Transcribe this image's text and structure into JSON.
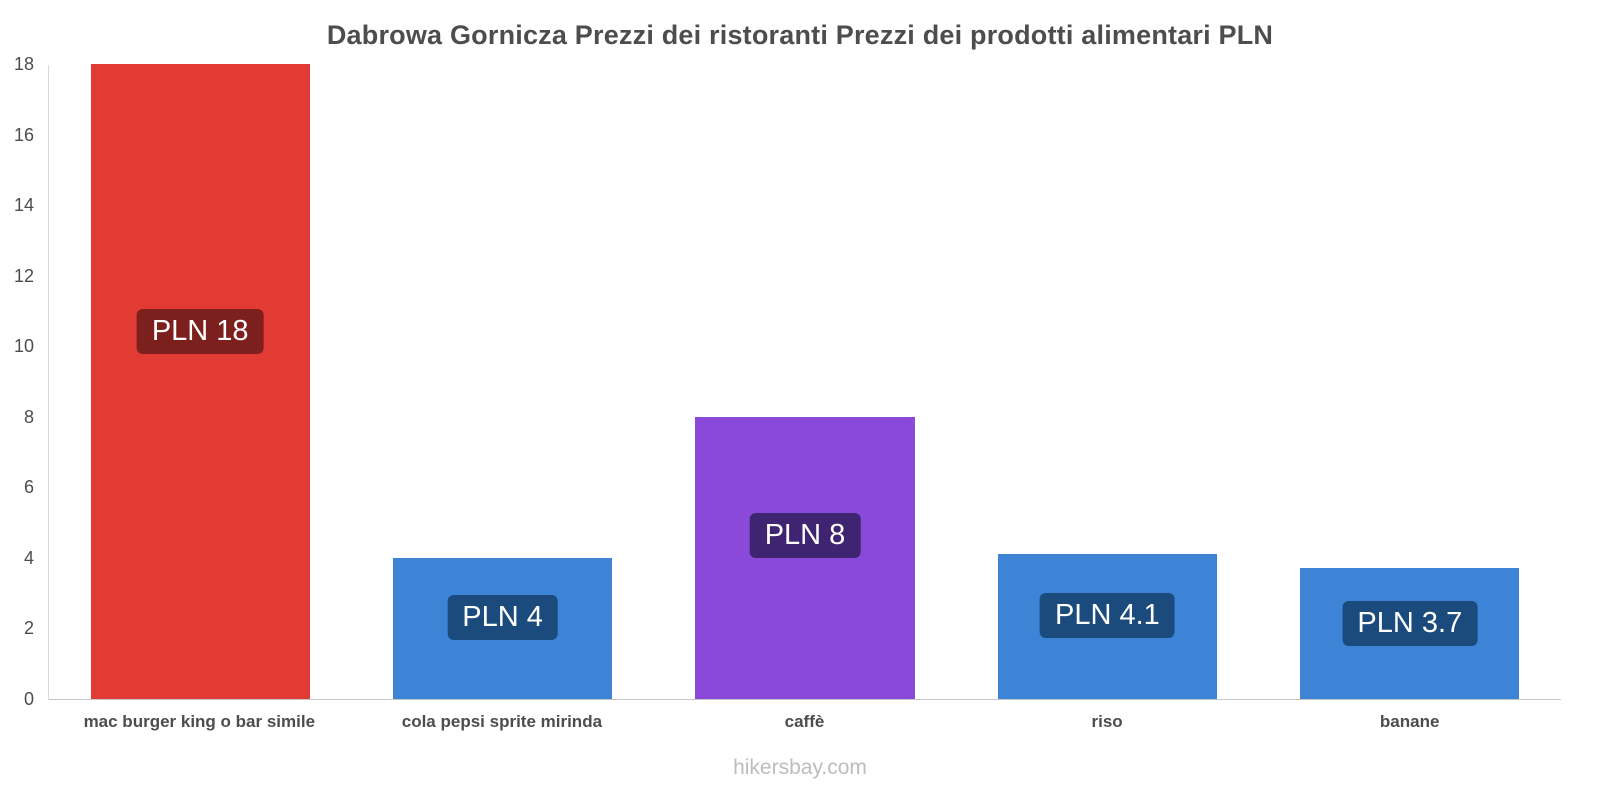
{
  "title": "Dabrowa Gornicza Prezzi dei ristoranti Prezzi dei prodotti alimentari PLN",
  "footer": "hikersbay.com",
  "chart_data": {
    "type": "bar",
    "title": "Dabrowa Gornicza Prezzi dei ristoranti Prezzi dei prodotti alimentari PLN",
    "categories": [
      "mac burger king o bar simile",
      "cola pepsi sprite mirinda",
      "caffè",
      "riso",
      "banane"
    ],
    "values": [
      18,
      4,
      8,
      4.1,
      3.7
    ],
    "bar_labels": [
      "PLN 18",
      "PLN 4",
      "PLN 8",
      "PLN 4.1",
      "PLN 3.7"
    ],
    "bar_colors": [
      "#e23b33",
      "#3d84d7",
      "#8a49d8",
      "#3d84d7",
      "#3d84d7"
    ],
    "label_bg_colors": [
      "#7c201d",
      "#1b4b7d",
      "#3f2571",
      "#1b4b7d",
      "#1b4b7d"
    ],
    "xlabel": "",
    "ylabel": "",
    "ylim": [
      0,
      18
    ],
    "yticks": [
      0,
      2,
      4,
      6,
      8,
      10,
      12,
      14,
      16,
      18
    ],
    "grid": false,
    "legend": false,
    "currency": "PLN"
  }
}
